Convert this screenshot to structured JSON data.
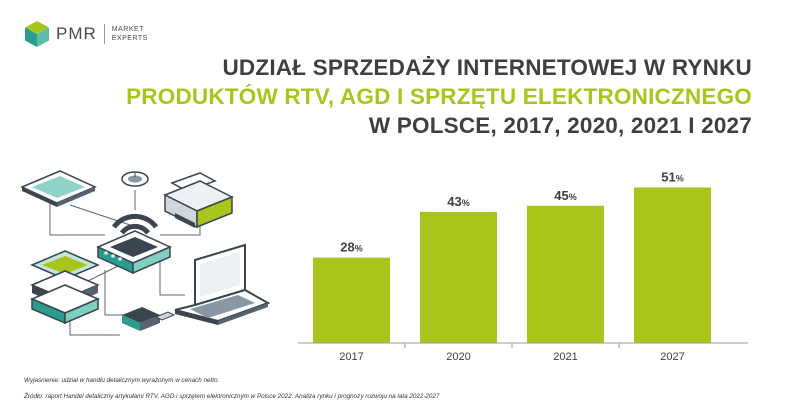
{
  "brand": {
    "name": "PMR",
    "tagline_line1": "MARKET",
    "tagline_line2": "EXPERTS",
    "colors": {
      "accent": "#a9c51c",
      "text": "#3f3f3f",
      "mark_teal": "#2a9d8f",
      "mark_green": "#a9c51c"
    }
  },
  "title": {
    "line1": "UDZIAŁ SPRZEDAŻY INTERNETOWEJ W RYNKU",
    "line2": "PRODUKTÓW RTV, AGD I SPRZĘTU ELEKTRONICZNEGO",
    "line3": "W POLSCE, 2017, 2020, 2021 I 2027"
  },
  "illustration": {
    "icon": "network-devices-icon"
  },
  "chart_data": {
    "type": "bar",
    "title": "UDZIAŁ SPRZEDAŻY INTERNETOWEJ W RYNKU PRODUKTÓW RTV, AGD I SPRZĘTU ELEKTRONICZNEGO W POLSCE, 2017, 2020, 2021 I 2027",
    "categories": [
      "2017",
      "2020",
      "2021",
      "2027"
    ],
    "values": [
      28,
      43,
      45,
      51
    ],
    "value_suffix": "%",
    "xlabel": "",
    "ylabel": "",
    "ylim": [
      0,
      60
    ],
    "grid": false,
    "color": "#a9c51c"
  },
  "footnotes": {
    "explanation": "Wyjaśnienie: udział w handlu detalicznym wyrażonym w cenach netto.",
    "source": "Źródło: raport Handel detaliczny artykułami RTV, AGD i sprzętem elektronicznym w Polsce 2022. Analiza rynku i prognozy rozwoju na lata 2022-2027"
  }
}
